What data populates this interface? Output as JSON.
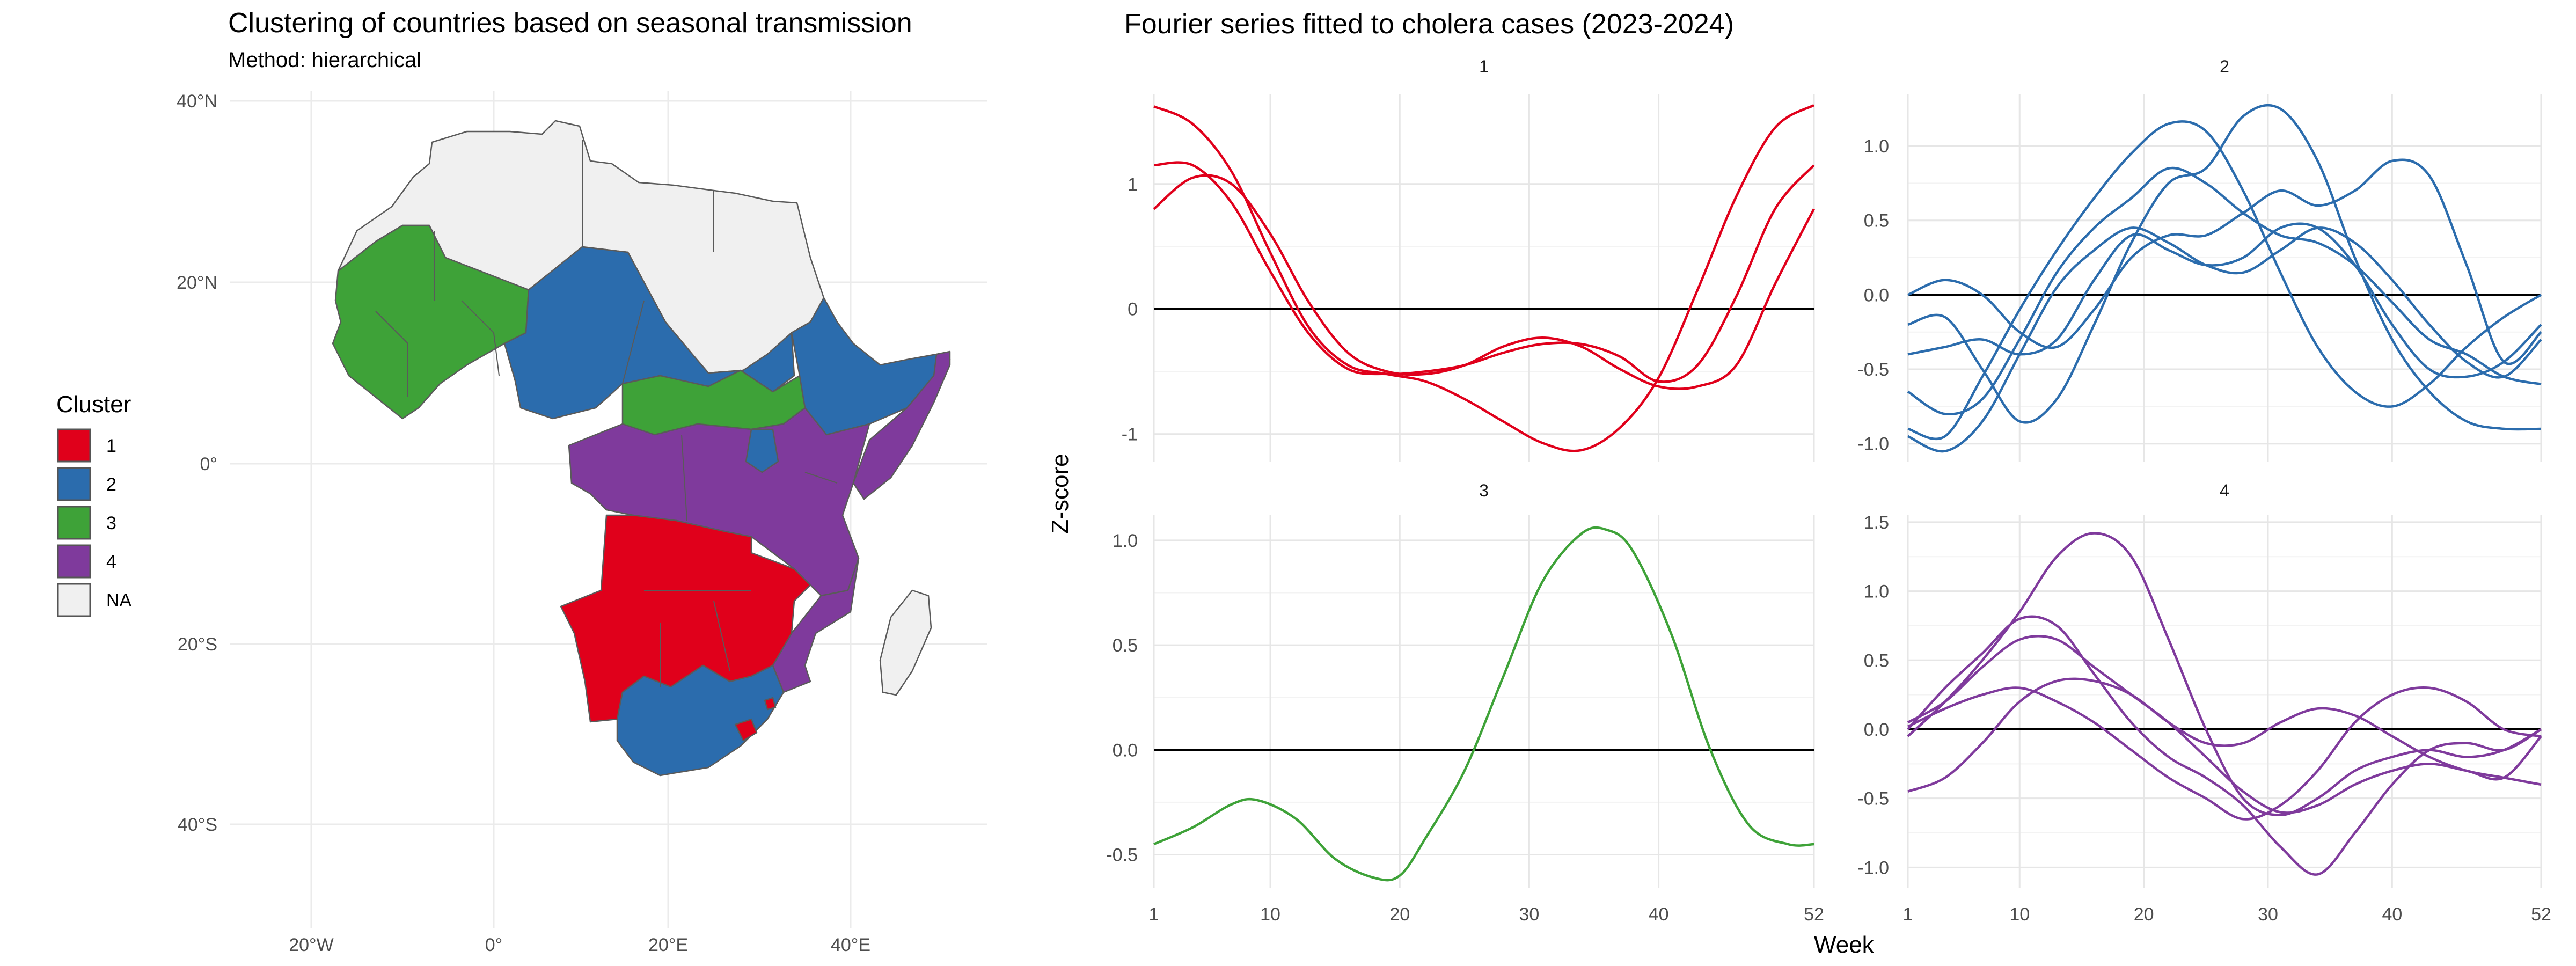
{
  "map_panel": {
    "title": "Clustering of countries based on seasonal transmission",
    "subtitle": "Method: hierarchical",
    "lat_labels": [
      "40°N",
      "20°N",
      "0°",
      "20°S",
      "40°S"
    ],
    "lon_labels": [
      "20°W",
      "0°",
      "20°E",
      "40°E"
    ],
    "legend": {
      "title": "Cluster",
      "items": [
        {
          "label": "1",
          "color": "#E0001B"
        },
        {
          "label": "2",
          "color": "#2B6CAD"
        },
        {
          "label": "3",
          "color": "#3EA238"
        },
        {
          "label": "4",
          "color": "#7F3A9C"
        },
        {
          "label": "NA",
          "color": "#F0F0F0"
        }
      ]
    },
    "country_colors": {
      "cluster_1": "#E0001B",
      "cluster_2": "#2B6CAD",
      "cluster_3": "#3EA238",
      "cluster_4": "#7F3A9C",
      "na": "#F0F0F0",
      "border": "#5a5a5a"
    }
  },
  "fourier_panel": {
    "title": "Fourier series fitted to cholera cases (2023-2024)",
    "xlabel": "Week",
    "ylabel": "Z-score"
  },
  "chart_data": [
    {
      "type": "line",
      "facet": "1",
      "color": "#E0001B",
      "x_ticks": [
        1,
        10,
        20,
        30,
        40,
        52
      ],
      "y_ticks": [
        -1,
        0,
        1
      ],
      "ylim": [
        -1.22,
        1.72
      ],
      "xlim": [
        1,
        52
      ],
      "hline": 0,
      "x": [
        1,
        4,
        7,
        10,
        13,
        16,
        19,
        22,
        25,
        28,
        31,
        34,
        37,
        40,
        43,
        46,
        49,
        52
      ],
      "series": [
        {
          "values": [
            1.62,
            1.48,
            1.1,
            0.45,
            -0.15,
            -0.45,
            -0.52,
            -0.58,
            -0.72,
            -0.9,
            -1.07,
            -1.13,
            -0.95,
            -0.55,
            0.15,
            0.9,
            1.45,
            1.63
          ]
        },
        {
          "values": [
            1.15,
            1.15,
            0.85,
            0.3,
            -0.2,
            -0.48,
            -0.52,
            -0.5,
            -0.45,
            -0.35,
            -0.28,
            -0.28,
            -0.38,
            -0.58,
            -0.45,
            0.1,
            0.8,
            1.15
          ]
        },
        {
          "values": [
            0.8,
            1.05,
            1.0,
            0.6,
            0.05,
            -0.35,
            -0.5,
            -0.52,
            -0.45,
            -0.3,
            -0.23,
            -0.3,
            -0.48,
            -0.62,
            -0.62,
            -0.45,
            0.2,
            0.8
          ]
        }
      ]
    },
    {
      "type": "line",
      "facet": "2",
      "color": "#2B6CAD",
      "x_ticks": [
        1,
        10,
        20,
        30,
        40,
        52
      ],
      "y_ticks": [
        -1.0,
        -0.5,
        0.0,
        0.5,
        1.0
      ],
      "ylim": [
        -1.12,
        1.35
      ],
      "xlim": [
        1,
        52
      ],
      "hline": 0,
      "x": [
        1,
        4,
        7,
        10,
        13,
        16,
        19,
        22,
        25,
        28,
        31,
        34,
        37,
        40,
        43,
        46,
        49,
        52
      ],
      "series": [
        {
          "values": [
            -0.9,
            -0.95,
            -0.55,
            -0.1,
            0.3,
            0.65,
            0.95,
            1.15,
            1.1,
            0.7,
            0.15,
            -0.35,
            -0.65,
            -0.75,
            -0.6,
            -0.35,
            -0.15,
            0.0
          ]
        },
        {
          "values": [
            -0.2,
            -0.15,
            -0.5,
            -0.85,
            -0.7,
            -0.2,
            0.35,
            0.75,
            0.85,
            1.2,
            1.25,
            0.9,
            0.25,
            -0.3,
            -0.65,
            -0.85,
            -0.9,
            -0.9
          ]
        },
        {
          "values": [
            -0.65,
            -0.8,
            -0.7,
            -0.3,
            0.15,
            0.45,
            0.65,
            0.85,
            0.75,
            0.55,
            0.4,
            0.35,
            0.2,
            -0.05,
            -0.3,
            -0.4,
            -0.55,
            -0.6
          ]
        },
        {
          "values": [
            -0.95,
            -1.05,
            -0.85,
            -0.4,
            0.05,
            0.3,
            0.45,
            0.35,
            0.2,
            0.15,
            0.3,
            0.45,
            0.35,
            0.1,
            -0.2,
            -0.45,
            -0.55,
            -0.3
          ]
        },
        {
          "values": [
            0.0,
            0.1,
            0.0,
            -0.25,
            -0.35,
            -0.1,
            0.25,
            0.4,
            0.4,
            0.55,
            0.7,
            0.6,
            0.7,
            0.9,
            0.8,
            0.2,
            -0.45,
            -0.25
          ]
        },
        {
          "values": [
            -0.4,
            -0.35,
            -0.3,
            -0.4,
            -0.3,
            0.1,
            0.4,
            0.3,
            0.2,
            0.25,
            0.45,
            0.45,
            0.2,
            -0.2,
            -0.5,
            -0.55,
            -0.45,
            -0.2
          ]
        }
      ]
    },
    {
      "type": "line",
      "facet": "3",
      "color": "#3EA238",
      "x_ticks": [
        1,
        10,
        20,
        30,
        40,
        52
      ],
      "y_ticks": [
        -0.5,
        0.0,
        0.5,
        1.0
      ],
      "ylim": [
        -0.66,
        1.12
      ],
      "xlim": [
        1,
        52
      ],
      "hline": 0,
      "x": [
        1,
        4,
        7,
        9,
        12,
        15,
        18,
        20,
        22,
        25,
        28,
        31,
        34,
        36,
        38,
        41,
        44,
        47,
        50,
        52
      ],
      "series": [
        {
          "values": [
            -0.45,
            -0.37,
            -0.26,
            -0.24,
            -0.33,
            -0.52,
            -0.61,
            -0.6,
            -0.42,
            -0.1,
            0.35,
            0.8,
            1.03,
            1.05,
            0.95,
            0.55,
            0.0,
            -0.36,
            -0.45,
            -0.45
          ]
        }
      ]
    },
    {
      "type": "line",
      "facet": "4",
      "color": "#7F3A9C",
      "x_ticks": [
        1,
        10,
        20,
        30,
        40,
        52
      ],
      "y_ticks": [
        -1.0,
        -0.5,
        0.0,
        0.5,
        1.0,
        1.5
      ],
      "ylim": [
        -1.15,
        1.55
      ],
      "xlim": [
        1,
        52
      ],
      "hline": 0,
      "x": [
        1,
        4,
        7,
        10,
        13,
        16,
        19,
        22,
        25,
        28,
        31,
        34,
        37,
        40,
        43,
        46,
        49,
        52
      ],
      "series": [
        {
          "values": [
            -0.05,
            0.2,
            0.5,
            0.85,
            1.25,
            1.42,
            1.25,
            0.65,
            0.0,
            -0.5,
            -0.62,
            -0.5,
            -0.3,
            -0.2,
            -0.15,
            -0.2,
            -0.15,
            0.0
          ]
        },
        {
          "values": [
            0.0,
            0.3,
            0.55,
            0.8,
            0.75,
            0.4,
            0.05,
            -0.2,
            -0.35,
            -0.55,
            -0.85,
            -1.05,
            -0.75,
            -0.4,
            -0.15,
            -0.1,
            -0.15,
            0.0
          ]
        },
        {
          "values": [
            0.05,
            0.2,
            0.45,
            0.65,
            0.65,
            0.45,
            0.25,
            0.05,
            -0.2,
            -0.45,
            -0.6,
            -0.55,
            -0.4,
            -0.3,
            -0.25,
            -0.3,
            -0.35,
            -0.05
          ]
        },
        {
          "values": [
            -0.45,
            -0.35,
            -0.1,
            0.2,
            0.35,
            0.35,
            0.25,
            0.05,
            -0.1,
            -0.1,
            0.05,
            0.15,
            0.1,
            -0.05,
            -0.2,
            -0.3,
            -0.35,
            -0.4
          ]
        },
        {
          "values": [
            0.02,
            0.15,
            0.25,
            0.3,
            0.2,
            0.05,
            -0.15,
            -0.35,
            -0.5,
            -0.65,
            -0.55,
            -0.3,
            0.05,
            0.25,
            0.3,
            0.2,
            0.0,
            -0.05
          ]
        }
      ]
    }
  ]
}
